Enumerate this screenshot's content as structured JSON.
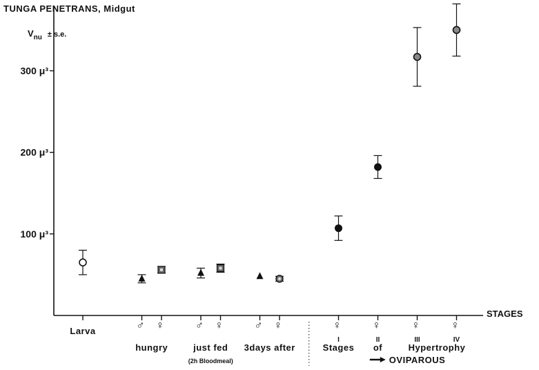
{
  "chart_data": {
    "type": "scatter",
    "title": "TUNGA PENETRANS,   Midgut",
    "ylabel": "V",
    "ylabel_sub": "nu",
    "ylabel_suffix": "± s.e.",
    "xlabel": "STAGES",
    "ylim": [
      0,
      380
    ],
    "yticks": [
      {
        "value": 100,
        "label": "100 μ³"
      },
      {
        "value": 200,
        "label": "200 μ³"
      },
      {
        "value": 300,
        "label": "300 μ³"
      }
    ],
    "xticks": [
      {
        "pos": 1.0,
        "sex": "",
        "roman": ""
      },
      {
        "pos": 2.5,
        "sex": "♂",
        "roman": ""
      },
      {
        "pos": 3.0,
        "sex": "♀",
        "roman": ""
      },
      {
        "pos": 4.0,
        "sex": "♂",
        "roman": ""
      },
      {
        "pos": 4.5,
        "sex": "♀",
        "roman": ""
      },
      {
        "pos": 5.5,
        "sex": "♂",
        "roman": ""
      },
      {
        "pos": 6.0,
        "sex": "♀",
        "roman": ""
      },
      {
        "pos": 7.5,
        "sex": "♀",
        "roman": "I"
      },
      {
        "pos": 8.5,
        "sex": "♀",
        "roman": "II"
      },
      {
        "pos": 9.5,
        "sex": "♀",
        "roman": "III"
      },
      {
        "pos": 10.5,
        "sex": "♀",
        "roman": "IV"
      }
    ],
    "group_labels": [
      {
        "pos": 1.0,
        "text": "Larva"
      },
      {
        "pos": 2.75,
        "text": "hungry"
      },
      {
        "pos": 4.25,
        "text": "just fed"
      },
      {
        "pos": 5.75,
        "text": "3days after"
      },
      {
        "pos": 7.5,
        "text": "Stages"
      },
      {
        "pos": 8.5,
        "text": "of"
      },
      {
        "pos": 10.0,
        "text": "Hypertrophy"
      }
    ],
    "sub_labels": [
      {
        "pos": 4.25,
        "text": "(2h Bloodmeal)"
      },
      {
        "pos": 9.4,
        "text": "OVIPAROUS",
        "arrow": true
      }
    ],
    "divider_x": 6.75,
    "points": [
      {
        "x": 1.0,
        "y": 65,
        "err": 15,
        "marker": "open-circle"
      },
      {
        "x": 2.5,
        "y": 45,
        "err": 5,
        "marker": "triangle"
      },
      {
        "x": 3.0,
        "y": 56,
        "err": 4,
        "marker": "double-square"
      },
      {
        "x": 4.0,
        "y": 52,
        "err": 6,
        "marker": "triangle"
      },
      {
        "x": 4.5,
        "y": 58,
        "err": 5,
        "marker": "double-square"
      },
      {
        "x": 5.5,
        "y": 48,
        "err": 0,
        "marker": "triangle"
      },
      {
        "x": 6.0,
        "y": 45,
        "err": 3,
        "marker": "double-circle"
      },
      {
        "x": 7.5,
        "y": 107,
        "err": 15,
        "marker": "filled-circle"
      },
      {
        "x": 8.5,
        "y": 182,
        "err": 14,
        "marker": "filled-circle"
      },
      {
        "x": 9.5,
        "y": 317,
        "err": 36,
        "marker": "grey-circle"
      },
      {
        "x": 10.5,
        "y": 350,
        "err": 32,
        "marker": "grey-circle"
      }
    ],
    "grid": false,
    "legend": "none"
  }
}
